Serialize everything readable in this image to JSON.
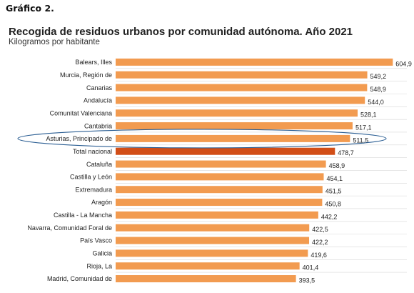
{
  "figure_label": "Gráfico 2.",
  "chart_data": {
    "type": "bar",
    "orientation": "horizontal",
    "title": "Recogida de residuos urbanos por comunidad autónoma. Año 2021",
    "subtitle": "Kilogramos por habitante",
    "categories": [
      "Balears, Illes",
      "Murcia, Región de",
      "Canarias",
      "Andalucía",
      "Comunitat Valenciana",
      "Cantabria",
      "Asturias, Principado de",
      "Total nacional",
      "Cataluña",
      "Castilla y León",
      "Extremadura",
      "Aragón",
      "Castilla - La Mancha",
      "Navarra, Comunidad Foral de",
      "País Vasco",
      "Galicia",
      "Rioja, La",
      "Madrid, Comunidad de"
    ],
    "values": [
      604.9,
      549.2,
      548.9,
      544.0,
      528.1,
      517.1,
      511.5,
      478.7,
      458.9,
      454.1,
      451.5,
      450.8,
      442.2,
      422.5,
      422.2,
      419.6,
      401.4,
      393.5
    ],
    "value_labels": [
      "604,9",
      "549,2",
      "548,9",
      "544,0",
      "528,1",
      "517,1",
      "511,5",
      "478,7",
      "458,9",
      "454,1",
      "451,5",
      "450,8",
      "442,2",
      "422,5",
      "422,2",
      "419,6",
      "401,4",
      "393,5"
    ],
    "highlighted_bar": "Total nacional",
    "circled_category": "Asturias, Principado de",
    "xlim": [
      0,
      620
    ],
    "grid": false,
    "legend": "none",
    "colors": {
      "bar": "#f29b50",
      "highlight_bar": "#d24e17",
      "ellipse": "#2b5e93",
      "separator": "#d7d7d7"
    }
  }
}
